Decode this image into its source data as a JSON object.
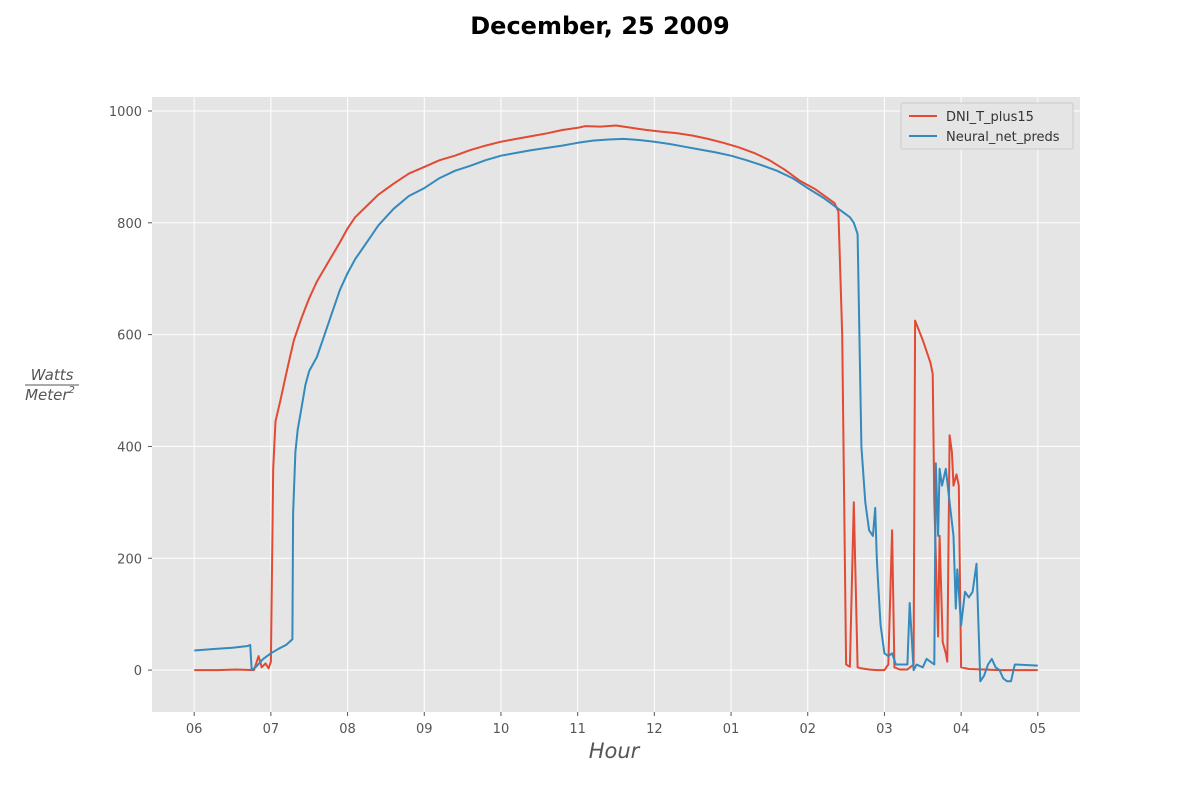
{
  "chart_data": {
    "type": "line",
    "title": "December, 25 2009",
    "xlabel": "Hour",
    "ylabel_numerator": "Watts",
    "ylabel_denominator_base": "Meter",
    "ylabel_denominator_exponent": "2",
    "grid": true,
    "legend_position": "top-right",
    "xlim": [
      -0.55,
      11.55
    ],
    "ylim": [
      -75,
      1025
    ],
    "x_ticks": [
      {
        "x": 0,
        "label": "06"
      },
      {
        "x": 1,
        "label": "07"
      },
      {
        "x": 2,
        "label": "08"
      },
      {
        "x": 3,
        "label": "09"
      },
      {
        "x": 4,
        "label": "10"
      },
      {
        "x": 5,
        "label": "11"
      },
      {
        "x": 6,
        "label": "12"
      },
      {
        "x": 7,
        "label": "01"
      },
      {
        "x": 8,
        "label": "02"
      },
      {
        "x": 9,
        "label": "03"
      },
      {
        "x": 10,
        "label": "04"
      },
      {
        "x": 11,
        "label": "05"
      }
    ],
    "y_ticks": [
      0,
      200,
      400,
      600,
      800,
      1000
    ],
    "series": [
      {
        "name": "DNI_T_plus15",
        "color": "#E24A33",
        "points": [
          [
            0,
            0
          ],
          [
            0.3,
            0
          ],
          [
            0.55,
            1
          ],
          [
            0.78,
            0
          ],
          [
            0.84,
            25
          ],
          [
            0.88,
            5
          ],
          [
            0.93,
            12
          ],
          [
            0.97,
            3
          ],
          [
            1.0,
            15
          ],
          [
            1.03,
            360
          ],
          [
            1.06,
            445
          ],
          [
            1.12,
            480
          ],
          [
            1.2,
            530
          ],
          [
            1.25,
            560
          ],
          [
            1.3,
            590
          ],
          [
            1.4,
            630
          ],
          [
            1.5,
            665
          ],
          [
            1.6,
            695
          ],
          [
            1.75,
            730
          ],
          [
            1.9,
            765
          ],
          [
            2.0,
            790
          ],
          [
            2.1,
            810
          ],
          [
            2.25,
            830
          ],
          [
            2.4,
            850
          ],
          [
            2.6,
            870
          ],
          [
            2.8,
            888
          ],
          [
            3.0,
            900
          ],
          [
            3.2,
            912
          ],
          [
            3.4,
            920
          ],
          [
            3.6,
            930
          ],
          [
            3.8,
            938
          ],
          [
            4.0,
            945
          ],
          [
            4.2,
            950
          ],
          [
            4.4,
            955
          ],
          [
            4.6,
            960
          ],
          [
            4.8,
            966
          ],
          [
            5.0,
            970
          ],
          [
            5.1,
            973
          ],
          [
            5.3,
            972
          ],
          [
            5.5,
            974
          ],
          [
            5.7,
            970
          ],
          [
            5.9,
            966
          ],
          [
            6.1,
            963
          ],
          [
            6.3,
            960
          ],
          [
            6.5,
            956
          ],
          [
            6.7,
            950
          ],
          [
            6.9,
            943
          ],
          [
            7.1,
            935
          ],
          [
            7.3,
            925
          ],
          [
            7.5,
            912
          ],
          [
            7.7,
            895
          ],
          [
            7.9,
            875
          ],
          [
            8.1,
            860
          ],
          [
            8.25,
            845
          ],
          [
            8.35,
            835
          ],
          [
            8.4,
            820
          ],
          [
            8.45,
            600
          ],
          [
            8.5,
            10
          ],
          [
            8.55,
            6
          ],
          [
            8.6,
            300
          ],
          [
            8.65,
            5
          ],
          [
            8.7,
            3
          ],
          [
            8.8,
            1
          ],
          [
            8.9,
            0
          ],
          [
            9.0,
            0
          ],
          [
            9.05,
            10
          ],
          [
            9.1,
            250
          ],
          [
            9.13,
            5
          ],
          [
            9.2,
            1
          ],
          [
            9.3,
            1
          ],
          [
            9.38,
            10
          ],
          [
            9.4,
            625
          ],
          [
            9.5,
            590
          ],
          [
            9.6,
            550
          ],
          [
            9.63,
            530
          ],
          [
            9.65,
            300
          ],
          [
            9.7,
            60
          ],
          [
            9.72,
            240
          ],
          [
            9.76,
            50
          ],
          [
            9.8,
            30
          ],
          [
            9.82,
            15
          ],
          [
            9.85,
            420
          ],
          [
            9.88,
            390
          ],
          [
            9.9,
            330
          ],
          [
            9.94,
            350
          ],
          [
            9.97,
            330
          ],
          [
            10.0,
            5
          ],
          [
            10.1,
            2
          ],
          [
            10.3,
            1
          ],
          [
            10.5,
            0
          ],
          [
            10.8,
            0
          ],
          [
            11.0,
            0
          ]
        ]
      },
      {
        "name": "Neural_net_preds",
        "color": "#348ABD",
        "points": [
          [
            0,
            35
          ],
          [
            0.3,
            38
          ],
          [
            0.5,
            40
          ],
          [
            0.7,
            43
          ],
          [
            0.73,
            45
          ],
          [
            0.75,
            0
          ],
          [
            0.8,
            5
          ],
          [
            0.9,
            20
          ],
          [
            1.0,
            30
          ],
          [
            1.1,
            38
          ],
          [
            1.2,
            45
          ],
          [
            1.28,
            55
          ],
          [
            1.29,
            280
          ],
          [
            1.32,
            390
          ],
          [
            1.35,
            430
          ],
          [
            1.4,
            470
          ],
          [
            1.45,
            510
          ],
          [
            1.5,
            535
          ],
          [
            1.6,
            560
          ],
          [
            1.7,
            600
          ],
          [
            1.8,
            640
          ],
          [
            1.9,
            680
          ],
          [
            2.0,
            710
          ],
          [
            2.1,
            735
          ],
          [
            2.2,
            755
          ],
          [
            2.3,
            775
          ],
          [
            2.4,
            795
          ],
          [
            2.5,
            810
          ],
          [
            2.6,
            825
          ],
          [
            2.8,
            848
          ],
          [
            3.0,
            862
          ],
          [
            3.2,
            880
          ],
          [
            3.4,
            893
          ],
          [
            3.6,
            902
          ],
          [
            3.8,
            912
          ],
          [
            4.0,
            920
          ],
          [
            4.2,
            925
          ],
          [
            4.4,
            930
          ],
          [
            4.6,
            934
          ],
          [
            4.8,
            938
          ],
          [
            5.0,
            943
          ],
          [
            5.2,
            947
          ],
          [
            5.4,
            949
          ],
          [
            5.6,
            950
          ],
          [
            5.8,
            948
          ],
          [
            6.0,
            945
          ],
          [
            6.2,
            941
          ],
          [
            6.4,
            936
          ],
          [
            6.6,
            931
          ],
          [
            6.8,
            926
          ],
          [
            7.0,
            920
          ],
          [
            7.2,
            912
          ],
          [
            7.4,
            903
          ],
          [
            7.6,
            893
          ],
          [
            7.8,
            880
          ],
          [
            8.0,
            862
          ],
          [
            8.2,
            845
          ],
          [
            8.4,
            825
          ],
          [
            8.55,
            810
          ],
          [
            8.6,
            800
          ],
          [
            8.65,
            780
          ],
          [
            8.7,
            400
          ],
          [
            8.75,
            300
          ],
          [
            8.8,
            250
          ],
          [
            8.85,
            240
          ],
          [
            8.88,
            290
          ],
          [
            8.9,
            200
          ],
          [
            8.92,
            150
          ],
          [
            8.95,
            80
          ],
          [
            9.0,
            30
          ],
          [
            9.05,
            25
          ],
          [
            9.1,
            30
          ],
          [
            9.15,
            10
          ],
          [
            9.2,
            10
          ],
          [
            9.3,
            10
          ],
          [
            9.33,
            120
          ],
          [
            9.38,
            0
          ],
          [
            9.42,
            10
          ],
          [
            9.5,
            5
          ],
          [
            9.55,
            20
          ],
          [
            9.6,
            15
          ],
          [
            9.65,
            10
          ],
          [
            9.67,
            370
          ],
          [
            9.7,
            240
          ],
          [
            9.72,
            360
          ],
          [
            9.75,
            330
          ],
          [
            9.8,
            360
          ],
          [
            9.85,
            300
          ],
          [
            9.9,
            240
          ],
          [
            9.93,
            110
          ],
          [
            9.95,
            180
          ],
          [
            10.0,
            80
          ],
          [
            10.05,
            140
          ],
          [
            10.1,
            130
          ],
          [
            10.15,
            140
          ],
          [
            10.2,
            190
          ],
          [
            10.25,
            -20
          ],
          [
            10.3,
            -10
          ],
          [
            10.35,
            10
          ],
          [
            10.4,
            20
          ],
          [
            10.45,
            5
          ],
          [
            10.5,
            0
          ],
          [
            10.55,
            -15
          ],
          [
            10.6,
            -20
          ],
          [
            10.65,
            -20
          ],
          [
            10.7,
            10
          ],
          [
            11.0,
            8
          ]
        ]
      }
    ]
  }
}
